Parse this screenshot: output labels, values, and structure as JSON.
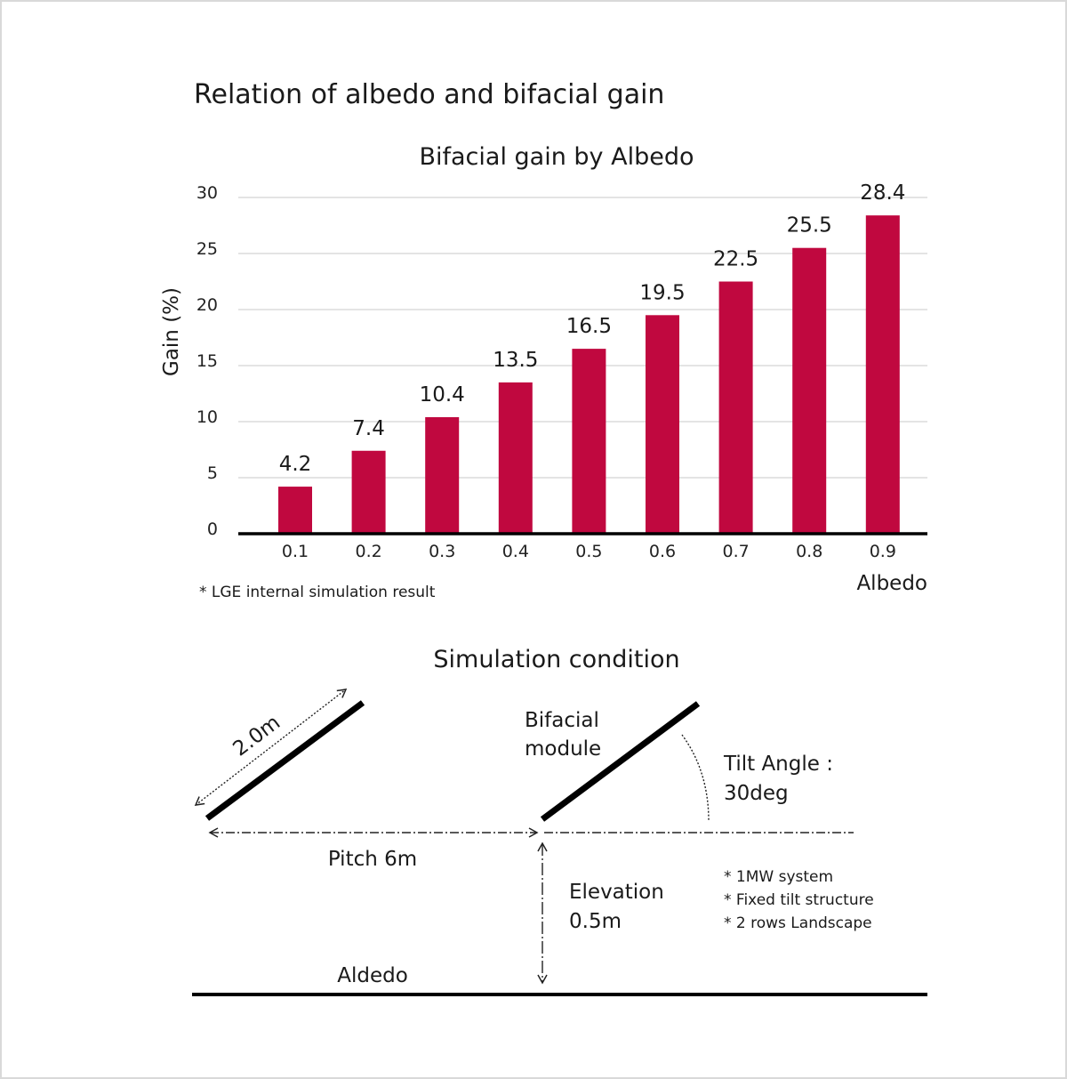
{
  "title": "Relation of albedo and bifacial gain",
  "colors": {
    "bar": "#c0083f",
    "grid": "#d4d4d4",
    "axis": "#000000"
  },
  "chart_data": {
    "type": "bar",
    "title": "Bifacial gain by Albedo",
    "xlabel": "Albedo",
    "ylabel": "Gain (%)",
    "categories": [
      "0.1",
      "0.2",
      "0.3",
      "0.4",
      "0.5",
      "0.6",
      "0.7",
      "0.8",
      "0.9"
    ],
    "values": [
      4.2,
      7.4,
      10.4,
      13.5,
      16.5,
      19.5,
      22.5,
      25.5,
      28.4
    ],
    "data_labels": [
      "4.2",
      "7.4",
      "10.4",
      "13.5",
      "16.5",
      "19.5",
      "22.5",
      "25.5",
      "28.4"
    ],
    "yticks": [
      "0",
      "5",
      "10",
      "15",
      "20",
      "25",
      "30"
    ],
    "ylim": [
      0,
      30
    ],
    "grid": true,
    "footnote": "* LGE internal simulation result"
  },
  "simulation": {
    "title": "Simulation condition",
    "length_label": "2.0m",
    "module_label_line1": "Bifacial",
    "module_label_line2": "module",
    "tilt_line1": "Tilt Angle :",
    "tilt_line2": "30deg",
    "pitch_label": "Pitch 6m",
    "elevation_line1": "Elevation",
    "elevation_line2": "0.5m",
    "ground_label": "Aldedo",
    "notes": [
      "* 1MW system",
      "* Fixed tilt structure",
      "* 2 rows Landscape"
    ]
  }
}
